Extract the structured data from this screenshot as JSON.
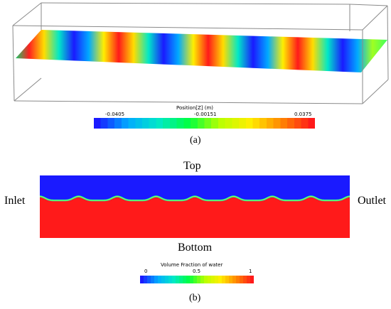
{
  "panel_a": {
    "colorbar_title": "Position[Z] (m)",
    "colorbar_ticks": [
      "-0.0405",
      "-0.00151",
      "0.0375"
    ],
    "caption": "(a)",
    "colors": [
      "#1a1aff",
      "#00aaff",
      "#00e8c8",
      "#00ff40",
      "#b8ff00",
      "#ffee00",
      "#ff8800",
      "#ff1a1a"
    ]
  },
  "panel_b": {
    "label_top": "Top",
    "label_bottom": "Bottom",
    "label_inlet": "Inlet",
    "label_outlet": "Outlet",
    "colorbar_title": "Volume Fraction of water",
    "colorbar_ticks": [
      "0",
      "0.5",
      "1"
    ],
    "caption": "(b)",
    "air_color": "#1a1aff",
    "water_color": "#ff1a1a",
    "wave_count": 8
  }
}
